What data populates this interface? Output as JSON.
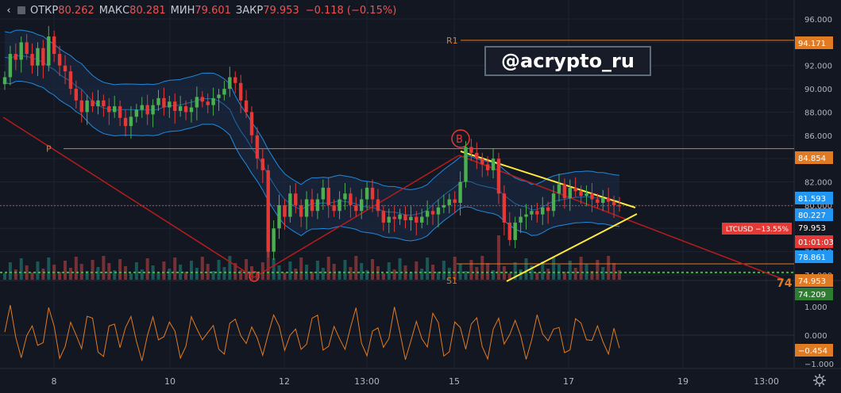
{
  "header": {
    "open_label": "ОТКР",
    "open_value": "80.262",
    "high_label": "МАКС",
    "high_value": "80.281",
    "low_label": "МИН",
    "low_value": "79.601",
    "close_label": "ЗАКР",
    "close_value": "79.953",
    "change": "−0.118 (−0.15%)"
  },
  "watermark": "@acrypto_ru",
  "price_axis": {
    "ticks": [
      "96.000",
      "94.000",
      "92.000",
      "90.000",
      "88.000",
      "86.000",
      "84.000",
      "82.000",
      "80.000",
      "78.000",
      "76.000",
      "74.000"
    ]
  },
  "price_badges": [
    {
      "text": "94.171",
      "value": 94.171,
      "color": "#e07b24"
    },
    {
      "text": "84.854",
      "value": 84.854,
      "color": "#e07b24"
    },
    {
      "text": "81.593",
      "value": 81.593,
      "color": "#2196f3"
    },
    {
      "text": "80.227",
      "value": 80.227,
      "color": "#2196f3"
    },
    {
      "text": "79.953",
      "value": 79.953,
      "color": "#131722"
    },
    {
      "text": "01:01:03",
      "value": null,
      "color": "#e53935"
    },
    {
      "text": "78.861",
      "value": 78.861,
      "color": "#2196f3"
    },
    {
      "text": "74.953",
      "value": 74.953,
      "color": "#e07b24"
    },
    {
      "text": "74.209",
      "value": 74.209,
      "color": "#2e7d32"
    }
  ],
  "pair_badge": {
    "text": "LTCUSD −13.55%",
    "color": "#e53935"
  },
  "oscillator": {
    "ticks": [
      "1.000",
      "0.000",
      "−1.000"
    ],
    "badge": {
      "text": "−0.454",
      "value": -0.454,
      "color": "#e07b24"
    }
  },
  "time_axis": [
    "8",
    "10",
    "12",
    "13:00",
    "15",
    "17",
    "19",
    "13:00"
  ],
  "annotations": {
    "r1": "R1",
    "p": "P",
    "s1": "S1",
    "b": "B",
    "target": "74"
  },
  "chart_data": {
    "type": "candlestick",
    "symbol": "LTCUSD",
    "ylim": [
      73,
      97
    ],
    "levels": {
      "R1": 94.171,
      "P": 84.854,
      "S1": 74.953,
      "green_dotted": 74.209,
      "last": 79.953
    },
    "closes": [
      91,
      93,
      92.5,
      94,
      93,
      92,
      93.5,
      92,
      94.5,
      93,
      92,
      91.5,
      90,
      89,
      88,
      89,
      88.5,
      89,
      88.5,
      88,
      88.5,
      87.5,
      86.8,
      87.6,
      88.2,
      88.6,
      87.8,
      88.6,
      89.2,
      88.4,
      88.9,
      88.1,
      88.5,
      88,
      88.4,
      89.3,
      88.9,
      88.6,
      89.2,
      89.5,
      90,
      91,
      90.5,
      89,
      88,
      86,
      84,
      83,
      76,
      78,
      80,
      79,
      81,
      80,
      79,
      80.5,
      79.5,
      80.5,
      81.5,
      80,
      79.5,
      80.5,
      81,
      80,
      79.5,
      80.5,
      81.5,
      80.5,
      79.5,
      78.5,
      79,
      78.8,
      79.2,
      78.7,
      79,
      78.5,
      79,
      79.5,
      79.2,
      79.8,
      80,
      80.5,
      80.2,
      82,
      85,
      84.5,
      84,
      83.5,
      83,
      84,
      81,
      78.5,
      77,
      78.5,
      79,
      79.2,
      79.5,
      79.2,
      79.8,
      79.5,
      81,
      81.8,
      80.6,
      81.5,
      81.2,
      80.8,
      81,
      80.5,
      80.2,
      80.6,
      80.3,
      80,
      79.95
    ],
    "oscillator_range": [
      -1.2,
      1.2
    ],
    "oscillator_last": -0.454
  }
}
